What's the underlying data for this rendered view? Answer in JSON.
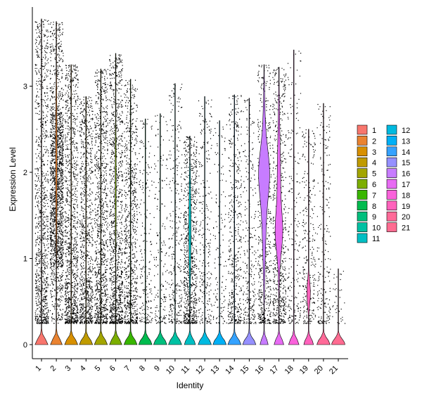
{
  "chart_data": {
    "type": "violin",
    "xlabel": "Identity",
    "ylabel": "Expression Level",
    "ylim": [
      -0.2,
      3.85
    ],
    "yticks": [
      0,
      1,
      2,
      3
    ],
    "categories": [
      "1",
      "2",
      "3",
      "4",
      "5",
      "6",
      "7",
      "8",
      "9",
      "10",
      "11",
      "12",
      "13",
      "14",
      "15",
      "16",
      "17",
      "18",
      "19",
      "20",
      "21"
    ],
    "colors": [
      "#F8766D",
      "#EA8331",
      "#D89000",
      "#C09B00",
      "#A3A500",
      "#7CAE00",
      "#39B600",
      "#00BB4E",
      "#00BF7D",
      "#00C1A3",
      "#00BFC4",
      "#00BAE0",
      "#00B0F6",
      "#35A2FF",
      "#9590FF",
      "#C77CFF",
      "#E76BF3",
      "#FA62DB",
      "#FF62BC",
      "#FF6A98",
      "#FF6C91"
    ],
    "max_values": [
      3.78,
      3.75,
      3.25,
      2.88,
      3.2,
      3.38,
      3.08,
      2.62,
      2.68,
      3.03,
      2.42,
      2.88,
      2.6,
      2.9,
      2.86,
      3.25,
      3.22,
      3.42,
      2.5,
      2.8,
      0.88
    ],
    "point_density": [
      0.55,
      1.0,
      0.6,
      0.5,
      0.55,
      0.6,
      0.45,
      0.12,
      0.1,
      0.18,
      0.45,
      0.15,
      0.08,
      0.25,
      0.15,
      0.3,
      0.35,
      0.12,
      0.15,
      0.12,
      0.02
    ],
    "zero_fraction": [
      0.97,
      0.88,
      0.98,
      0.99,
      0.98,
      0.92,
      0.98,
      0.99,
      0.99,
      0.99,
      0.82,
      0.99,
      0.99,
      0.99,
      0.99,
      0.6,
      0.72,
      0.78,
      0.72,
      0.99,
      0.99
    ],
    "legend": {
      "position": "right",
      "columns": [
        [
          "1",
          "2",
          "3",
          "4",
          "5",
          "6",
          "7",
          "8",
          "9",
          "10",
          "11"
        ],
        [
          "12",
          "13",
          "14",
          "15",
          "16",
          "17",
          "18",
          "19",
          "20",
          "21"
        ]
      ]
    }
  }
}
